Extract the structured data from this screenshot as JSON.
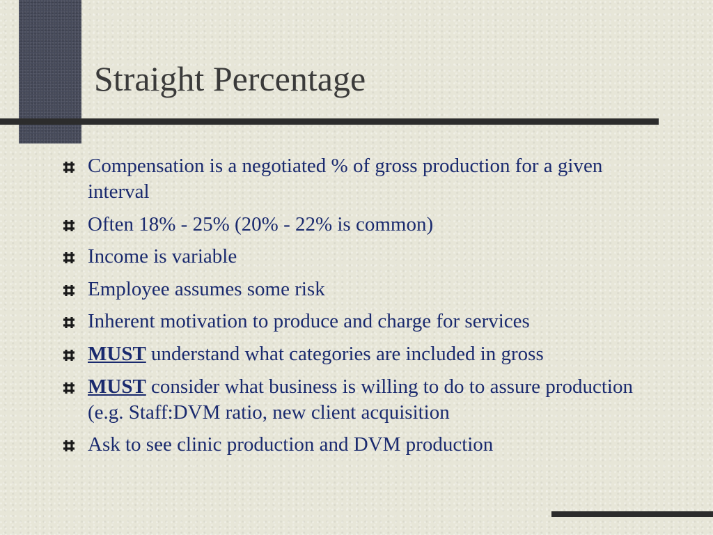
{
  "slide": {
    "title": "Straight Percentage",
    "bullet_icon": "hash-bullet-icon",
    "bullets": [
      {
        "lead": "",
        "text": "Compensation is a negotiated % of gross production for a given interval"
      },
      {
        "lead": "",
        "text": "Often 18% - 25% (20% - 22% is common)"
      },
      {
        "lead": "",
        "text": "Income is variable"
      },
      {
        "lead": "",
        "text": "Employee assumes some risk"
      },
      {
        "lead": "",
        "text": "Inherent motivation to produce and charge for services"
      },
      {
        "lead": "MUST",
        "text": " understand what categories are included in gross"
      },
      {
        "lead": "MUST",
        "text": " consider what business is willing to do to assure production (e.g. Staff:DVM ratio, new client acquisition"
      },
      {
        "lead": "",
        "text": "Ask to see clinic production and DVM production"
      }
    ]
  },
  "colors": {
    "background": "#e7e6d8",
    "accent_block": "#464a5a",
    "rule": "#2c2c2c",
    "title_text": "#3a3a3a",
    "body_text": "#1a2a6e"
  }
}
